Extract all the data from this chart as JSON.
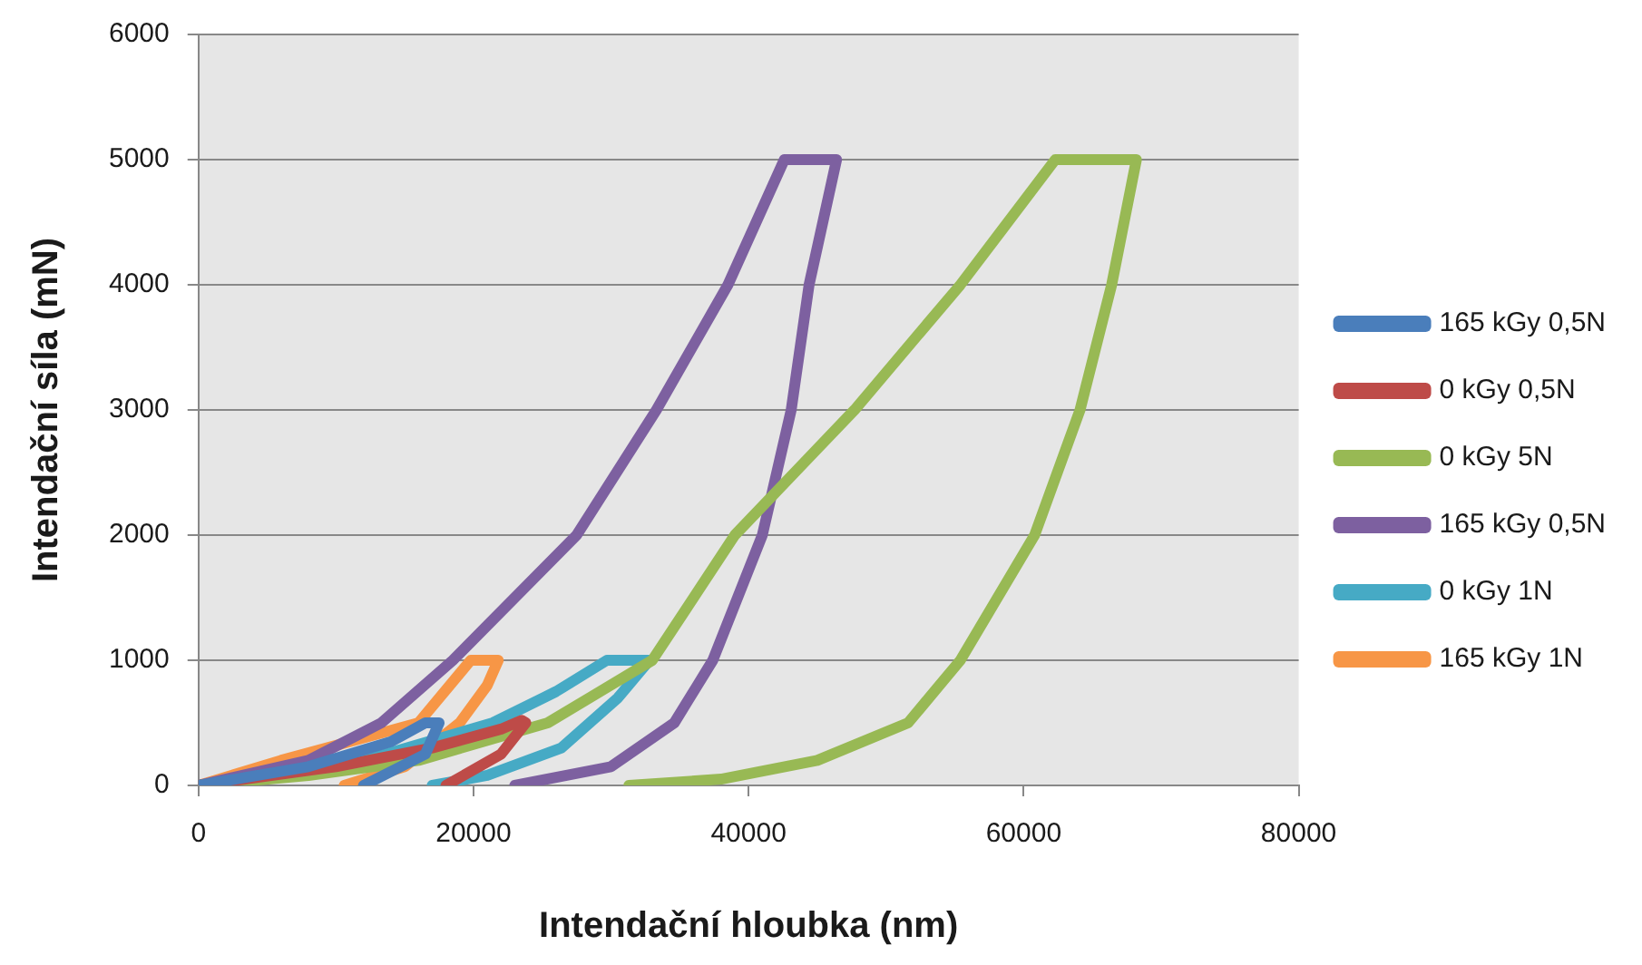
{
  "chart_data": {
    "type": "line",
    "xlabel": "Intendační hloubka (nm)",
    "ylabel": "Intendační síla (mN)",
    "xlim": [
      0,
      80000
    ],
    "xticks": [
      0,
      20000,
      40000,
      60000,
      80000
    ],
    "ylim": [
      0,
      6000
    ],
    "yticks": [
      0,
      1000,
      2000,
      3000,
      4000,
      5000,
      6000
    ],
    "grid": "y",
    "legend": "right",
    "marker": "none",
    "line_style": "solid",
    "series": [
      {
        "name": "165 kGy 0,5N",
        "color": "#4a7ebb",
        "x": [
          0,
          8000,
          14000,
          16500,
          17500,
          16500,
          12000
        ],
        "values": [
          0,
          150,
          350,
          500,
          500,
          250,
          0
        ]
      },
      {
        "name": "0 kGy 0,5N",
        "color": "#be4b48",
        "x": [
          0,
          10000,
          17000,
          22000,
          23500,
          23800,
          22000,
          18000
        ],
        "values": [
          0,
          150,
          300,
          450,
          520,
          500,
          250,
          0
        ]
      },
      {
        "name": "0 kGy 5N",
        "color": "#98b954",
        "x": [
          0,
          8000,
          16000,
          25400,
          33000,
          39000,
          47700,
          55400,
          62300,
          68200,
          66400,
          64100,
          60800,
          55400,
          51600,
          45000,
          38000,
          31300
        ],
        "values": [
          0,
          80,
          200,
          500,
          1000,
          2000,
          3000,
          4000,
          5000,
          5000,
          4000,
          3000,
          2000,
          1000,
          500,
          200,
          50,
          0
        ]
      },
      {
        "name": "165 kGy 0,5N",
        "color": "#7d60a0",
        "x": [
          0,
          8000,
          13300,
          18500,
          27500,
          33300,
          38500,
          42600,
          46400,
          44400,
          43100,
          41000,
          37400,
          34600,
          30000,
          23000
        ],
        "values": [
          0,
          200,
          500,
          1000,
          2000,
          3000,
          4000,
          5000,
          5000,
          4000,
          3000,
          2000,
          1000,
          500,
          150,
          0
        ]
      },
      {
        "name": "0 kGy 1N",
        "color": "#46aac5",
        "x": [
          0,
          12000,
          21400,
          26000,
          29700,
          32800,
          30500,
          26400,
          21000,
          17000
        ],
        "values": [
          0,
          200,
          500,
          750,
          1000,
          1000,
          700,
          300,
          80,
          0
        ]
      },
      {
        "name": "165 kGy 1N",
        "color": "#f79646",
        "x": [
          0,
          6000,
          11000,
          16000,
          19800,
          21800,
          21000,
          19000,
          15000,
          10600
        ],
        "values": [
          0,
          200,
          350,
          500,
          1000,
          1000,
          800,
          500,
          150,
          0
        ]
      }
    ]
  }
}
